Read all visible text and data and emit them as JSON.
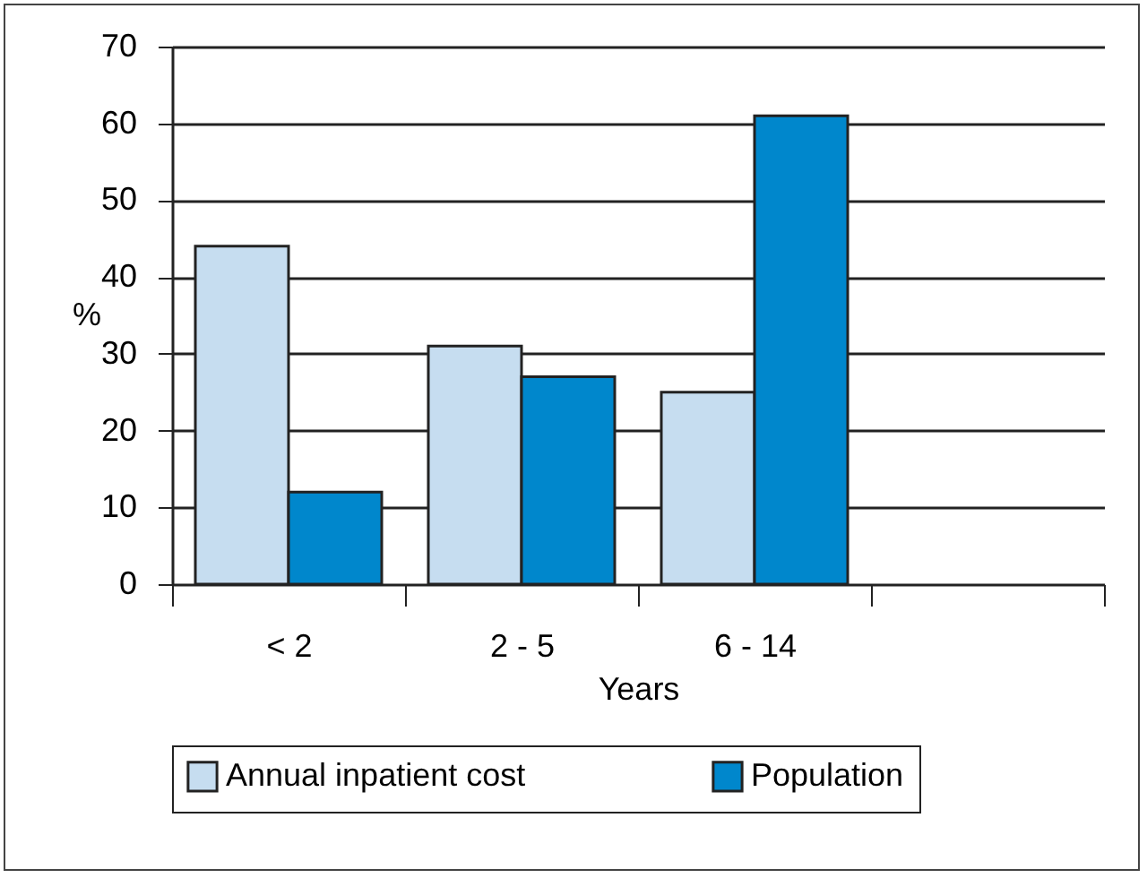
{
  "chart_data": {
    "type": "bar",
    "xlabel": "Years",
    "ylabel": "%",
    "categories": [
      "< 2",
      "2 - 5",
      "6 - 14",
      null
    ],
    "series": [
      {
        "name": "Annual inpatient cost",
        "color": "#c6ddf0",
        "values": [
          44,
          31,
          25,
          null
        ]
      },
      {
        "name": "Population",
        "color": "#0087cc",
        "values": [
          12,
          27,
          61,
          null
        ]
      }
    ],
    "ylim": [
      0,
      70
    ],
    "yticks": [
      0,
      10,
      20,
      30,
      40,
      50,
      60,
      70
    ],
    "grid": "y",
    "legend": "bottom"
  }
}
